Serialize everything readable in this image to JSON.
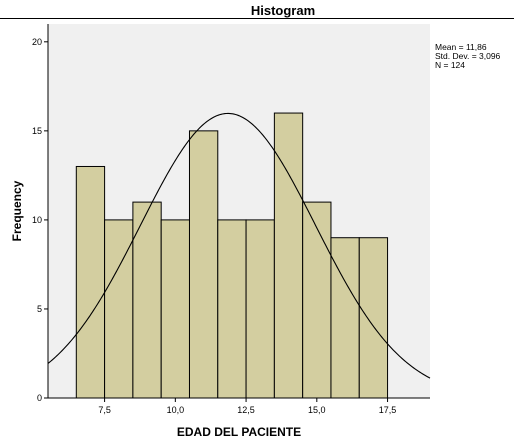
{
  "chart_data": {
    "type": "bar",
    "title": "Histogram",
    "xlabel": "EDAD DEL PACIENTE",
    "ylabel": "Frequency",
    "xlim": [
      5.5,
      19.0
    ],
    "ylim": [
      0,
      21
    ],
    "x_ticks": [
      7.5,
      10.0,
      12.5,
      15.0,
      17.5
    ],
    "x_tick_labels": [
      "7,5",
      "10,0",
      "12,5",
      "15,0",
      "17,5"
    ],
    "y_ticks": [
      0,
      5,
      10,
      15,
      20
    ],
    "y_tick_labels": [
      "0",
      "5",
      "10",
      "15",
      "20"
    ],
    "bin_width": 1.0,
    "bins": [
      {
        "start": 6.5,
        "end": 7.5,
        "value": 13
      },
      {
        "start": 7.5,
        "end": 8.5,
        "value": 10
      },
      {
        "start": 8.5,
        "end": 9.5,
        "value": 11
      },
      {
        "start": 9.5,
        "end": 10.5,
        "value": 10
      },
      {
        "start": 10.5,
        "end": 11.5,
        "value": 15
      },
      {
        "start": 11.5,
        "end": 12.5,
        "value": 10
      },
      {
        "start": 12.5,
        "end": 13.5,
        "value": 10
      },
      {
        "start": 13.5,
        "end": 14.5,
        "value": 16
      },
      {
        "start": 14.5,
        "end": 15.5,
        "value": 11
      },
      {
        "start": 15.5,
        "end": 16.5,
        "value": 9
      },
      {
        "start": 16.5,
        "end": 17.5,
        "value": 9
      }
    ],
    "normal_curve": {
      "mean": 11.86,
      "std_dev": 3.096,
      "n": 124
    },
    "stats_lines": [
      "Mean = 11,86",
      "Std. Dev. = 3,096",
      "N = 124"
    ],
    "grid": false,
    "colors": {
      "bar_fill": "#d3cea0",
      "bar_stroke": "#000000",
      "plot_background": "#f0f0f0",
      "curve": "#000000"
    }
  }
}
